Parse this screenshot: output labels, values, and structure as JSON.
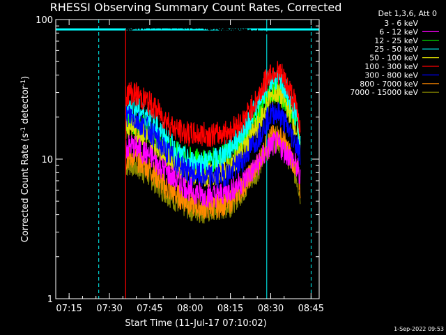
{
  "chart_data": {
    "type": "line",
    "title": "RHESSI Observing Summary Count Rates, Corrected",
    "xlabel": "Start Time (11-Jul-17 07:10:02)",
    "ylabel_main": "Corrected Count Rate (s",
    "ylabel_sup1": "-1",
    "ylabel_mid": " detector",
    "ylabel_sup2": "-1",
    "ylabel_end": ")",
    "ylim": [
      1,
      100
    ],
    "yscale": "log",
    "xlim": [
      "07:10:02",
      "08:48:00"
    ],
    "xticks": [
      "07:15",
      "07:30",
      "07:45",
      "08:00",
      "08:15",
      "08:30",
      "08:45"
    ],
    "yticks": [
      "1",
      "10",
      "100"
    ],
    "legend_title": "Det 1,3,6, Att 0",
    "legend_position": "top-right",
    "timestamp": "1-Sep-2022 09:53",
    "x_minutes": [
      26,
      28,
      30,
      35,
      40,
      45,
      50,
      55,
      60,
      65,
      70,
      75,
      78,
      80,
      82,
      84,
      86,
      88,
      90,
      91
    ],
    "series": [
      {
        "name": "3 - 6 keV",
        "color": "#000000",
        "values": [
          85,
          86,
          87,
          88,
          89,
          89,
          88,
          87,
          86,
          85,
          84,
          82,
          80,
          79,
          79,
          79,
          78,
          78,
          78,
          60
        ]
      },
      {
        "name": "6 - 12 keV",
        "color": "#ff00ff",
        "values": [
          12,
          12.5,
          12,
          10.5,
          8.5,
          7,
          6,
          5.5,
          5.5,
          6,
          7,
          9,
          11,
          12.5,
          13,
          12,
          11,
          10,
          8.5,
          7
        ]
      },
      {
        "name": "12 - 25 keV",
        "color": "#00ff00",
        "values": [
          19,
          19,
          18,
          16,
          13,
          11,
          10,
          9.5,
          10,
          11,
          14,
          20,
          26,
          30,
          31,
          29,
          25,
          21,
          17,
          13
        ]
      },
      {
        "name": "25 - 50 keV",
        "color": "#00ffff",
        "values": [
          23,
          24,
          23,
          20,
          15,
          11,
          9.5,
          9.5,
          10,
          12,
          16,
          24,
          32,
          37,
          38,
          35,
          30,
          24,
          18,
          13
        ]
      },
      {
        "name": "50 - 100 keV",
        "color": "#dddd00",
        "values": [
          17,
          17.5,
          16,
          14,
          11,
          9,
          8,
          7.5,
          8,
          9,
          12,
          17,
          23,
          28,
          30,
          28,
          24,
          20,
          15,
          12
        ]
      },
      {
        "name": "100 - 300 keV",
        "color": "#ff0000",
        "values": [
          29,
          30,
          29,
          25,
          20,
          16,
          15,
          15,
          15,
          16,
          19,
          27,
          36,
          42,
          43,
          40,
          34,
          28,
          22,
          16
        ]
      },
      {
        "name": "300 - 800 keV",
        "color": "#0000ff",
        "values": [
          20,
          20.5,
          19,
          16,
          12,
          9.5,
          8,
          7.5,
          7.5,
          8,
          10,
          14,
          18,
          21,
          22,
          20,
          17,
          14.5,
          12.5,
          10
        ]
      },
      {
        "name": "800 - 7000 keV",
        "color": "#ff8800",
        "values": [
          10,
          10.5,
          10,
          8.5,
          6.5,
          5.5,
          4.8,
          4.5,
          4.6,
          5,
          6.5,
          9,
          12,
          14,
          15,
          14,
          12,
          10,
          8,
          6
        ]
      },
      {
        "name": "7000 - 15000 keV",
        "color": "#888800",
        "values": [
          9,
          9.2,
          8.8,
          7.5,
          6,
          5,
          4.4,
          4.2,
          4.3,
          4.7,
          6,
          8.2,
          11,
          13,
          14,
          13,
          11,
          9,
          7,
          5.5
        ]
      }
    ],
    "vertical_markers": [
      {
        "time_min": 0,
        "style": "solid",
        "color": "#00ffff"
      },
      {
        "time_min": 16,
        "style": "dashed",
        "color": "#00ffff"
      },
      {
        "time_min": 78.5,
        "style": "solid",
        "color": "#00ffff"
      },
      {
        "time_min": 95,
        "style": "dashed",
        "color": "#00ffff"
      }
    ],
    "horizontal_marker": {
      "value": 85,
      "color": "#00ffff"
    }
  }
}
